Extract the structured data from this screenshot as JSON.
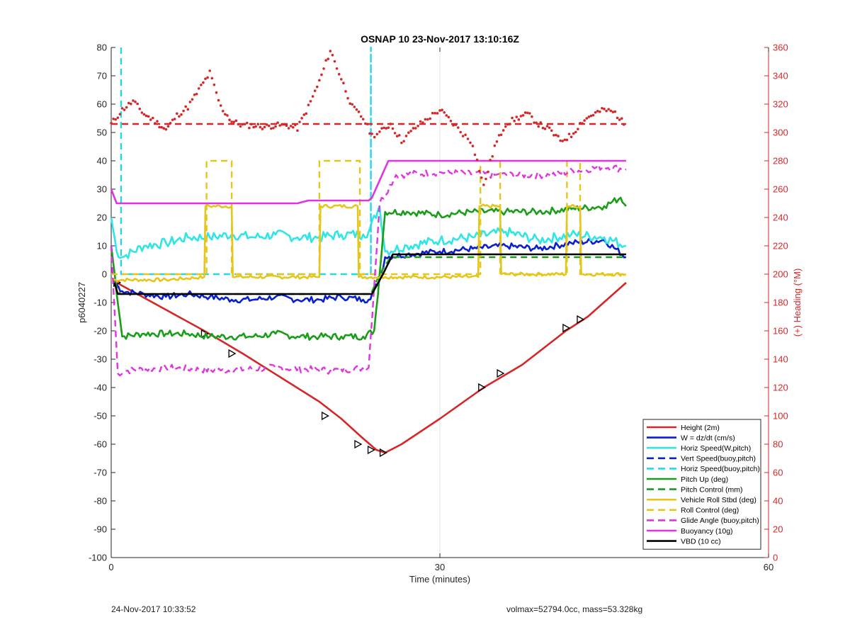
{
  "footer": {
    "left": "24-Nov-2017 10:33:52",
    "right": "volmax=52794.0cc, mass=53.328kg"
  },
  "chart_data": {
    "type": "line",
    "title": "OSNAP 10 23-Nov-2017 13:10:16Z",
    "xlabel": "Time (minutes)",
    "ylabel": "p6040227",
    "y2label": "(+) Heading (°M)",
    "xlim": [
      0,
      60
    ],
    "ylim": [
      -100,
      80
    ],
    "y2lim": [
      0,
      360
    ],
    "xticks": [
      0,
      30,
      60
    ],
    "yticks": [
      -100,
      -90,
      -80,
      -70,
      -60,
      -50,
      -40,
      -30,
      -20,
      -10,
      0,
      10,
      20,
      30,
      40,
      50,
      60,
      70,
      80
    ],
    "y2ticks": [
      0,
      20,
      40,
      60,
      80,
      100,
      120,
      140,
      160,
      180,
      200,
      220,
      240,
      260,
      280,
      300,
      320,
      340,
      360
    ],
    "grid": true,
    "legend_position": "bottom-right",
    "colors": {
      "red": "#d62728",
      "blue": "#0a1fcf",
      "cyan": "#2ee6e6",
      "cyan_dash": "#29d6e8",
      "green": "#1a9e1a",
      "yellow": "#e6c61a",
      "magenta": "#e034e0",
      "black": "#000000"
    },
    "series": [
      {
        "name": "Height (2m)",
        "color": "#d62728",
        "style": "solid",
        "axis": "left",
        "x": [
          0.5,
          8.5,
          12,
          19,
          21,
          23,
          24.2,
          25,
          26.5,
          30,
          34,
          37.5,
          41.5,
          43.5,
          47
        ],
        "y": [
          -3,
          -20,
          -28,
          -45,
          -51,
          -58,
          -62,
          -63,
          -60,
          -51,
          -40,
          -32,
          -20,
          -15,
          -3
        ],
        "markers": [
          [
            0.5,
            -3
          ],
          [
            8.5,
            -21
          ],
          [
            11,
            -28
          ],
          [
            19.5,
            -50
          ],
          [
            22.5,
            -60
          ],
          [
            23.7,
            -62
          ],
          [
            24.8,
            -63
          ],
          [
            33.8,
            -40
          ],
          [
            35.5,
            -35
          ],
          [
            41.5,
            -19
          ],
          [
            42.8,
            -16
          ]
        ]
      },
      {
        "name": "W = dz/dt (cm/s)",
        "color": "#0a1fcf",
        "style": "solid",
        "axis": "left",
        "x": [
          0.3,
          1,
          3,
          5,
          7,
          9,
          11,
          13,
          15,
          17,
          19,
          21,
          23,
          23.5,
          24.5,
          25,
          27,
          30,
          33,
          36,
          39,
          42,
          45,
          47
        ],
        "y": [
          -3,
          -6,
          -7,
          -8,
          -7,
          -8,
          -9,
          -9,
          -8,
          -9,
          -9,
          -8,
          -9,
          -9,
          -2,
          6,
          7,
          8,
          9,
          10,
          9,
          11,
          12,
          6
        ]
      },
      {
        "name": "Horiz Speed(W,pitch)",
        "color": "#2ee6e6",
        "style": "solid",
        "axis": "left",
        "x": [
          0,
          0.5,
          1,
          3,
          5,
          7,
          9,
          11,
          13,
          15,
          17,
          19,
          21,
          23,
          23.5,
          24.5,
          25,
          27,
          30,
          33,
          36,
          39,
          42,
          45,
          47
        ],
        "y": [
          20,
          8,
          6,
          10,
          11,
          13,
          13,
          14,
          13,
          14,
          13,
          13,
          14,
          14,
          15,
          24,
          8,
          10,
          12,
          13,
          15,
          12,
          14,
          13,
          10
        ]
      },
      {
        "name": "Vert Speed(buoy,pitch)",
        "color": "#0a1fcf",
        "style": "dashed",
        "axis": "left",
        "x": [],
        "y": []
      },
      {
        "name": "Horiz Speed(buoy,pitch)",
        "color": "#29d6e8",
        "style": "dashed",
        "axis": "left",
        "x": [
          0.9,
          0.9,
          0.9,
          23.7,
          23.7,
          23.7
        ],
        "y": [
          80,
          0,
          0,
          0,
          80,
          0
        ]
      },
      {
        "name": "Pitch Up (deg)",
        "color": "#1a9e1a",
        "style": "solid",
        "axis": "left",
        "x": [
          0,
          1,
          3,
          5,
          7,
          9,
          11,
          13,
          15,
          17,
          19,
          21,
          23,
          24,
          24.5,
          25,
          27,
          30,
          33,
          36,
          39,
          42,
          45,
          46.5,
          47
        ],
        "y": [
          10,
          -22,
          -21,
          -21,
          -21,
          -22,
          -22,
          -22,
          -21,
          -22,
          -22,
          -22,
          -22,
          -20,
          0,
          22,
          22,
          21,
          22,
          22,
          22,
          23,
          24,
          27,
          24
        ]
      },
      {
        "name": "Pitch Control (mm)",
        "color": "#1a9e1a",
        "style": "dashed",
        "axis": "left",
        "x": [
          0.3,
          0.8,
          23.7,
          24.5,
          25.5,
          47
        ],
        "y": [
          -3,
          -7,
          -7,
          0,
          6,
          6
        ]
      },
      {
        "name": "Vehicle Roll Stbd (deg)",
        "color": "#e6c61a",
        "style": "solid",
        "axis": "left",
        "x": [
          0,
          5,
          8.5,
          8.6,
          11,
          11.1,
          19,
          19.1,
          22.5,
          22.6,
          25,
          33.5,
          33.6,
          35.5,
          35.6,
          41.5,
          41.6,
          42.8,
          42.9,
          47
        ],
        "y": [
          -2,
          -2,
          -1,
          24,
          24,
          -1,
          -1,
          24,
          24,
          -1,
          -1,
          -1,
          24,
          24,
          0,
          0,
          24,
          24,
          0,
          0
        ]
      },
      {
        "name": "Roll Control (deg)",
        "color": "#e6c61a",
        "style": "dashed",
        "axis": "left",
        "x": [
          0,
          8.7,
          8.7,
          11,
          11,
          19,
          19,
          22.7,
          22.7,
          33.7,
          33.7,
          35.5,
          35.5,
          41.6,
          41.6,
          42.8,
          42.8,
          47
        ],
        "y": [
          0,
          0,
          40,
          40,
          0,
          0,
          40,
          40,
          0,
          0,
          40,
          40,
          0,
          0,
          40,
          40,
          0,
          0
        ]
      },
      {
        "name": "Glide Angle (buoy,pitch)",
        "color": "#e034e0",
        "style": "dashed",
        "axis": "left",
        "x": [
          0,
          0.6,
          1.5,
          5,
          10,
          15,
          20,
          23.5,
          24.5,
          26,
          30,
          35,
          40,
          45,
          47
        ],
        "y": [
          10,
          -35,
          -34,
          -33,
          -34,
          -33,
          -34,
          -33,
          25,
          35,
          36,
          35,
          35,
          38,
          37
        ]
      },
      {
        "name": "Buoyancy (10g)",
        "color": "#e034e0",
        "style": "solid",
        "axis": "left",
        "x": [
          0,
          0.5,
          17,
          18,
          23.5,
          23.8,
          25.3,
          47
        ],
        "y": [
          30,
          25,
          25,
          26,
          26,
          27,
          40,
          40
        ]
      },
      {
        "name": "VBD (10 cc)",
        "color": "#000000",
        "style": "solid",
        "axis": "left",
        "x": [
          0.3,
          0.6,
          23.8,
          24.8,
          25.7,
          47
        ],
        "y": [
          -3,
          -7,
          -7,
          0,
          7,
          7
        ]
      },
      {
        "name": "",
        "color": "#d62728",
        "style": "dotted",
        "axis": "right",
        "x": [
          0,
          1,
          2,
          3,
          4,
          5,
          6,
          7,
          8,
          9,
          10,
          11,
          12,
          13,
          14,
          15,
          16,
          17,
          18,
          19,
          20,
          21,
          22,
          23,
          23.8,
          24.5,
          25.5,
          26.5,
          28,
          30,
          31,
          33,
          34,
          35,
          36,
          37,
          38,
          39,
          40,
          41,
          42,
          43,
          44,
          45,
          46,
          47
        ],
        "y": [
          306,
          316,
          322,
          313,
          308,
          302,
          312,
          318,
          330,
          342,
          318,
          308,
          305,
          305,
          304,
          305,
          305,
          303,
          318,
          336,
          358,
          338,
          318,
          310,
          298,
          300,
          306,
          294,
          305,
          316,
          308,
          292,
          262,
          290,
          306,
          310,
          313,
          306,
          302,
          294,
          298,
          308,
          313,
          316,
          314,
          304
        ]
      },
      {
        "name": "",
        "color": "#d62728",
        "style": "dashed",
        "axis": "right",
        "x": [
          0,
          47
        ],
        "y": [
          306,
          306
        ]
      }
    ]
  }
}
